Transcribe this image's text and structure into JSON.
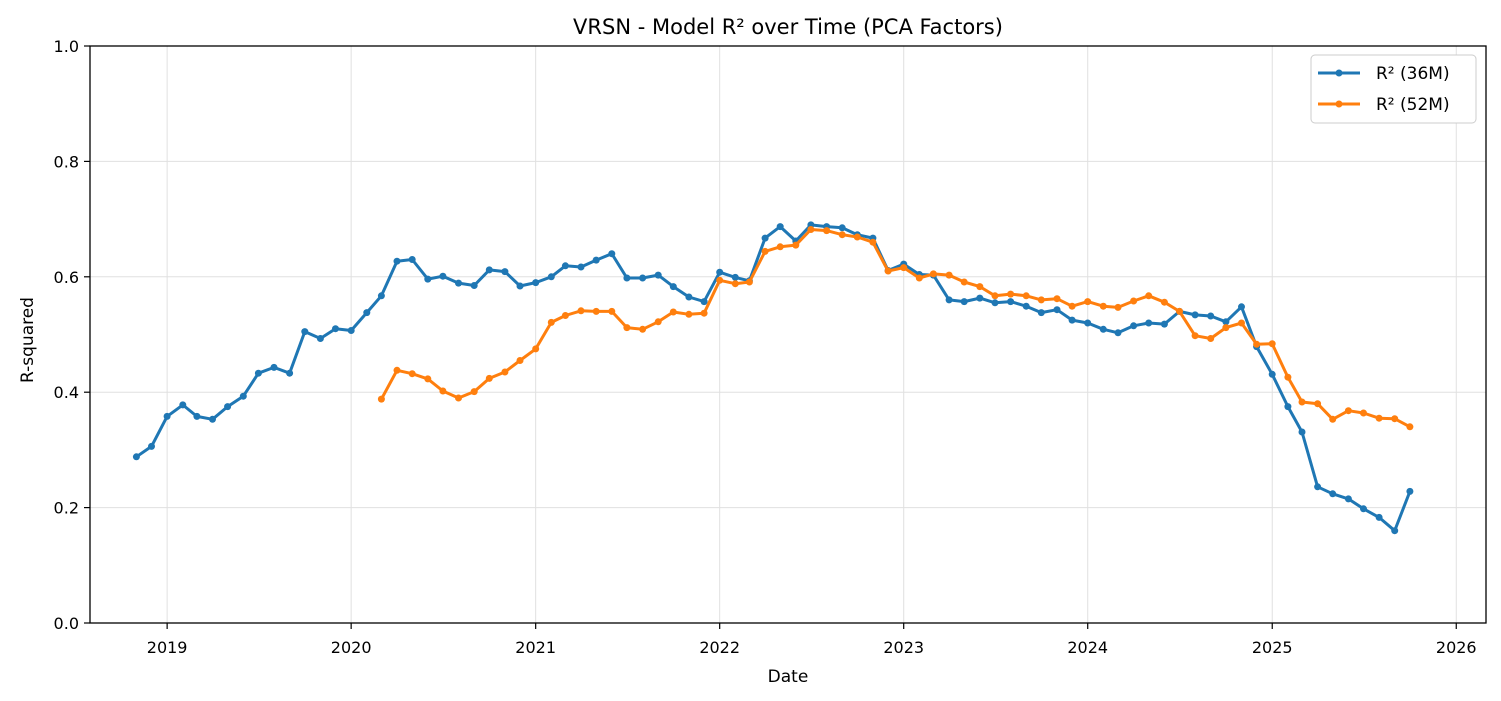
{
  "chart_data": {
    "type": "line",
    "title": "VRSN - Model R² over Time (PCA Factors)",
    "xlabel": "Date",
    "ylabel": "R-squared",
    "ylim": [
      0,
      1
    ],
    "xlim": [
      "2018-08-01",
      "2026-03-01"
    ],
    "x_ticks": [
      "2019",
      "2020",
      "2021",
      "2022",
      "2023",
      "2024",
      "2025",
      "2026"
    ],
    "y_ticks": [
      "0.0",
      "0.2",
      "0.4",
      "0.6",
      "0.8",
      "1.0"
    ],
    "grid": true,
    "legend_position": "top-right",
    "colors": {
      "series_36": "#1f77b4",
      "series_52": "#ff7f0e",
      "grid": "#e0e0e0"
    },
    "series": [
      {
        "name": "R² (36M)",
        "x": [
          "2018-11",
          "2018-12",
          "2019-01",
          "2019-02",
          "2019-03",
          "2019-04",
          "2019-05",
          "2019-06",
          "2019-07",
          "2019-08",
          "2019-09",
          "2019-10",
          "2019-11",
          "2019-12",
          "2020-01",
          "2020-02",
          "2020-03",
          "2020-04",
          "2020-05",
          "2020-06",
          "2020-07",
          "2020-08",
          "2020-09",
          "2020-10",
          "2020-11",
          "2020-12",
          "2021-01",
          "2021-02",
          "2021-03",
          "2021-04",
          "2021-05",
          "2021-06",
          "2021-07",
          "2021-08",
          "2021-09",
          "2021-10",
          "2021-11",
          "2021-12",
          "2022-01",
          "2022-02",
          "2022-03",
          "2022-04",
          "2022-05",
          "2022-06",
          "2022-07",
          "2022-08",
          "2022-09",
          "2022-10",
          "2022-11",
          "2022-12",
          "2023-01",
          "2023-02",
          "2023-03",
          "2023-04",
          "2023-05",
          "2023-06",
          "2023-07",
          "2023-08",
          "2023-09",
          "2023-10",
          "2023-11",
          "2023-12",
          "2024-01",
          "2024-02",
          "2024-03",
          "2024-04",
          "2024-05",
          "2024-06",
          "2024-07",
          "2024-08",
          "2024-09",
          "2024-10",
          "2024-11",
          "2024-12",
          "2025-01",
          "2025-02",
          "2025-03",
          "2025-04",
          "2025-05",
          "2025-06",
          "2025-07",
          "2025-08",
          "2025-09",
          "2025-10"
        ],
        "values": [
          0.288,
          0.306,
          0.358,
          0.378,
          0.358,
          0.353,
          0.375,
          0.393,
          0.433,
          0.443,
          0.433,
          0.505,
          0.493,
          0.51,
          0.507,
          0.538,
          0.567,
          0.627,
          0.63,
          0.596,
          0.601,
          0.589,
          0.585,
          0.612,
          0.609,
          0.584,
          0.59,
          0.6,
          0.619,
          0.617,
          0.629,
          0.64,
          0.598,
          0.598,
          0.603,
          0.583,
          0.565,
          0.557,
          0.608,
          0.599,
          0.593,
          0.667,
          0.687,
          0.662,
          0.69,
          0.687,
          0.685,
          0.673,
          0.667,
          0.611,
          0.622,
          0.604,
          0.603,
          0.56,
          0.557,
          0.563,
          0.555,
          0.557,
          0.549,
          0.538,
          0.543,
          0.525,
          0.52,
          0.509,
          0.503,
          0.515,
          0.52,
          0.518,
          0.54,
          0.534,
          0.532,
          0.522,
          0.548,
          0.479,
          0.431,
          0.375,
          0.331,
          0.236,
          0.224,
          0.215,
          0.198,
          0.183,
          0.16,
          0.228
        ]
      },
      {
        "name": "R² (52M)",
        "x": [
          "2020-03",
          "2020-04",
          "2020-05",
          "2020-06",
          "2020-07",
          "2020-08",
          "2020-09",
          "2020-10",
          "2020-11",
          "2020-12",
          "2021-01",
          "2021-02",
          "2021-03",
          "2021-04",
          "2021-05",
          "2021-06",
          "2021-07",
          "2021-08",
          "2021-09",
          "2021-10",
          "2021-11",
          "2021-12",
          "2022-01",
          "2022-02",
          "2022-03",
          "2022-04",
          "2022-05",
          "2022-06",
          "2022-07",
          "2022-08",
          "2022-09",
          "2022-10",
          "2022-11",
          "2022-12",
          "2023-01",
          "2023-02",
          "2023-03",
          "2023-04",
          "2023-05",
          "2023-06",
          "2023-07",
          "2023-08",
          "2023-09",
          "2023-10",
          "2023-11",
          "2023-12",
          "2024-01",
          "2024-02",
          "2024-03",
          "2024-04",
          "2024-05",
          "2024-06",
          "2024-07",
          "2024-08",
          "2024-09",
          "2024-10",
          "2024-11",
          "2024-12",
          "2025-01",
          "2025-02",
          "2025-03",
          "2025-04",
          "2025-05",
          "2025-06",
          "2025-07",
          "2025-08",
          "2025-09",
          "2025-10"
        ],
        "values": [
          0.388,
          0.438,
          0.432,
          0.423,
          0.402,
          0.39,
          0.401,
          0.424,
          0.435,
          0.455,
          0.475,
          0.521,
          0.533,
          0.541,
          0.54,
          0.54,
          0.512,
          0.509,
          0.522,
          0.539,
          0.535,
          0.537,
          0.594,
          0.588,
          0.591,
          0.644,
          0.652,
          0.655,
          0.682,
          0.68,
          0.673,
          0.669,
          0.66,
          0.61,
          0.616,
          0.598,
          0.605,
          0.603,
          0.591,
          0.583,
          0.567,
          0.57,
          0.567,
          0.56,
          0.562,
          0.549,
          0.557,
          0.549,
          0.547,
          0.558,
          0.567,
          0.556,
          0.54,
          0.498,
          0.493,
          0.512,
          0.52,
          0.483,
          0.484,
          0.426,
          0.383,
          0.38,
          0.353,
          0.368,
          0.364,
          0.355,
          0.354,
          0.34
        ]
      }
    ]
  }
}
